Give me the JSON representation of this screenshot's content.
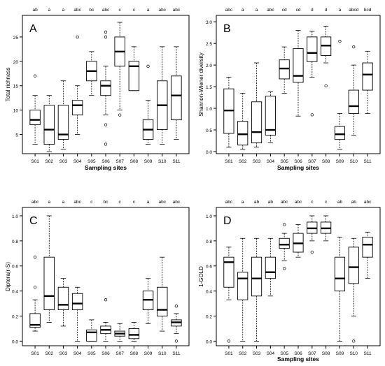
{
  "chart_data": [
    {
      "type": "boxplot",
      "panel_letter": "A",
      "xlabel": "Sampling sites",
      "ylabel": "Total richness",
      "ylim": [
        1.5,
        29
      ],
      "yticks": [
        5,
        10,
        15,
        20,
        25
      ],
      "grid": false,
      "categories": [
        "S01",
        "S02",
        "S03",
        "S04",
        "S05",
        "S06",
        "S07",
        "S08",
        "S09",
        "S10",
        "S11"
      ],
      "significance_letters": [
        "ab",
        "a",
        "a",
        "abc",
        "bc",
        "abc",
        "c",
        "c",
        "a",
        "abc",
        "abc"
      ],
      "boxes": [
        {
          "min": 3,
          "q1": 7,
          "median": 8,
          "q3": 10,
          "max": 13,
          "outliers": [
            17
          ]
        },
        {
          "min": 1.5,
          "q1": 3,
          "median": 6,
          "q3": 11,
          "max": 13,
          "outliers": []
        },
        {
          "min": 2,
          "q1": 4,
          "median": 5,
          "q3": 11,
          "max": 16,
          "outliers": []
        },
        {
          "min": 5,
          "q1": 9,
          "median": 11,
          "q3": 12,
          "max": 15,
          "outliers": [
            25
          ]
        },
        {
          "min": 13,
          "q1": 16,
          "median": 18,
          "q3": 20,
          "max": 22,
          "outliers": []
        },
        {
          "min": 9,
          "q1": 13,
          "median": 15,
          "q3": 16,
          "max": 19,
          "outliers": [
            25,
            26,
            7,
            3
          ]
        },
        {
          "min": 10,
          "q1": 19,
          "median": 22,
          "q3": 25,
          "max": 28,
          "outliers": [
            9
          ]
        },
        {
          "min": 14,
          "q1": 14,
          "median": 19,
          "q3": 20,
          "max": 23,
          "outliers": []
        },
        {
          "min": 3,
          "q1": 4,
          "median": 6,
          "q3": 8,
          "max": 12,
          "outliers": [
            19
          ]
        },
        {
          "min": 3,
          "q1": 6,
          "median": 11,
          "q3": 16,
          "max": 23,
          "outliers": []
        },
        {
          "min": 4,
          "q1": 8,
          "median": 13,
          "q3": 17,
          "max": 23,
          "outliers": []
        }
      ]
    },
    {
      "type": "boxplot",
      "panel_letter": "B",
      "xlabel": "Sampling sites",
      "ylabel": "Shannon-Wiener diversity",
      "ylim": [
        0,
        3.1
      ],
      "yticks": [
        0.0,
        0.5,
        1.0,
        1.5,
        2.0,
        2.5,
        3.0
      ],
      "grid": false,
      "categories": [
        "S01",
        "S02",
        "S03",
        "S04",
        "S05",
        "S06",
        "S07",
        "S08",
        "S09",
        "S10",
        "S11"
      ],
      "significance_letters": [
        "abc",
        "a",
        "a",
        "abc",
        "cd",
        "cd",
        "d",
        "d",
        "a",
        "abcd",
        "bcd"
      ],
      "boxes": [
        {
          "min": 0.1,
          "q1": 0.42,
          "median": 0.95,
          "q3": 1.45,
          "max": 1.72,
          "outliers": []
        },
        {
          "min": 0.05,
          "q1": 0.15,
          "median": 0.4,
          "q3": 0.7,
          "max": 1.35,
          "outliers": []
        },
        {
          "min": 0.1,
          "q1": 0.2,
          "median": 0.45,
          "q3": 1.15,
          "max": 2.05,
          "outliers": []
        },
        {
          "min": 0.2,
          "q1": 0.38,
          "median": 0.5,
          "q3": 1.28,
          "max": 1.38,
          "outliers": []
        },
        {
          "min": 1.35,
          "q1": 1.68,
          "median": 1.92,
          "q3": 2.12,
          "max": 2.42,
          "outliers": []
        },
        {
          "min": 0.82,
          "q1": 1.6,
          "median": 1.75,
          "q3": 2.38,
          "max": 2.8,
          "outliers": []
        },
        {
          "min": 1.72,
          "q1": 2.08,
          "median": 2.28,
          "q3": 2.65,
          "max": 2.78,
          "outliers": [
            0.85
          ]
        },
        {
          "min": 2.05,
          "q1": 2.22,
          "median": 2.45,
          "q3": 2.65,
          "max": 2.9,
          "outliers": [
            1.52
          ]
        },
        {
          "min": 0.05,
          "q1": 0.28,
          "median": 0.4,
          "q3": 0.58,
          "max": 0.88,
          "outliers": [
            2.55
          ]
        },
        {
          "min": 0.38,
          "q1": 0.88,
          "median": 1.05,
          "q3": 1.42,
          "max": 2.0,
          "outliers": [
            2.42
          ]
        },
        {
          "min": 0.88,
          "q1": 1.42,
          "median": 1.78,
          "q3": 2.05,
          "max": 2.32,
          "outliers": []
        }
      ]
    },
    {
      "type": "boxplot",
      "panel_letter": "C",
      "xlabel": "",
      "ylabel": "Diptera(r-S)",
      "ylim": [
        -0.02,
        1.05
      ],
      "yticks": [
        0.0,
        0.2,
        0.4,
        0.6,
        0.8,
        1.0
      ],
      "grid": false,
      "categories": [
        "S01",
        "S02",
        "S03",
        "S04",
        "S05",
        "S06",
        "S07",
        "S08",
        "S09",
        "S10",
        "S11"
      ],
      "significance_letters": [
        "abc",
        "a",
        "a",
        "abc",
        "c",
        "bc",
        "c",
        "c",
        "a",
        "abc",
        "abc"
      ],
      "boxes": [
        {
          "min": 0.08,
          "q1": 0.11,
          "median": 0.13,
          "q3": 0.22,
          "max": 0.33,
          "outliers": [
            0.43,
            0.67
          ]
        },
        {
          "min": 0.15,
          "q1": 0.25,
          "median": 0.36,
          "q3": 0.67,
          "max": 1.0,
          "outliers": []
        },
        {
          "min": 0.12,
          "q1": 0.25,
          "median": 0.29,
          "q3": 0.43,
          "max": 0.5,
          "outliers": []
        },
        {
          "min": 0.0,
          "q1": 0.25,
          "median": 0.3,
          "q3": 0.38,
          "max": 0.43,
          "outliers": []
        },
        {
          "min": 0.0,
          "q1": 0.0,
          "median": 0.07,
          "q3": 0.09,
          "max": 0.17,
          "outliers": []
        },
        {
          "min": 0.0,
          "q1": 0.06,
          "median": 0.09,
          "q3": 0.12,
          "max": 0.15,
          "outliers": [
            0.33
          ]
        },
        {
          "min": 0.0,
          "q1": 0.04,
          "median": 0.06,
          "q3": 0.08,
          "max": 0.14,
          "outliers": []
        },
        {
          "min": 0.0,
          "q1": 0.02,
          "median": 0.05,
          "q3": 0.1,
          "max": 0.15,
          "outliers": []
        },
        {
          "min": 0.14,
          "q1": 0.25,
          "median": 0.33,
          "q3": 0.4,
          "max": 0.5,
          "outliers": []
        },
        {
          "min": 0.08,
          "q1": 0.2,
          "median": 0.25,
          "q3": 0.43,
          "max": 0.67,
          "outliers": []
        },
        {
          "min": 0.06,
          "q1": 0.12,
          "median": 0.15,
          "q3": 0.17,
          "max": 0.22,
          "outliers": [
            0.28,
            0.0
          ]
        }
      ]
    },
    {
      "type": "boxplot",
      "panel_letter": "D",
      "xlabel": "Sampling sites",
      "ylabel": "1-GOLD",
      "ylim": [
        -0.02,
        1.05
      ],
      "yticks": [
        0.0,
        0.2,
        0.4,
        0.6,
        0.8,
        1.0
      ],
      "grid": false,
      "categories": [
        "S01",
        "S02",
        "S03",
        "S04",
        "S05",
        "S06",
        "S07",
        "S08",
        "S09",
        "S10",
        "S11"
      ],
      "significance_letters": [
        "abc",
        "a",
        "ab",
        "ab",
        "abc",
        "abc",
        "c",
        "c",
        "ab",
        "ab",
        "abc"
      ],
      "boxes": [
        {
          "min": 0.33,
          "q1": 0.43,
          "median": 0.63,
          "q3": 0.67,
          "max": 0.75,
          "outliers": [
            0.0
          ]
        },
        {
          "min": 0.0,
          "q1": 0.33,
          "median": 0.5,
          "q3": 0.55,
          "max": 0.82,
          "outliers": []
        },
        {
          "min": 0.0,
          "q1": 0.36,
          "median": 0.5,
          "q3": 0.67,
          "max": 0.82,
          "outliers": []
        },
        {
          "min": 0.36,
          "q1": 0.5,
          "median": 0.55,
          "q3": 0.67,
          "max": 0.82,
          "outliers": []
        },
        {
          "min": 0.64,
          "q1": 0.74,
          "median": 0.77,
          "q3": 0.82,
          "max": 0.86,
          "outliers": [
            0.93,
            0.58
          ]
        },
        {
          "min": 0.67,
          "q1": 0.71,
          "median": 0.78,
          "q3": 0.86,
          "max": 0.93,
          "outliers": []
        },
        {
          "min": 0.8,
          "q1": 0.86,
          "median": 0.9,
          "q3": 0.95,
          "max": 1.0,
          "outliers": [
            0.71
          ]
        },
        {
          "min": 0.8,
          "q1": 0.86,
          "median": 0.9,
          "q3": 0.95,
          "max": 1.0,
          "outliers": []
        },
        {
          "min": 0.0,
          "q1": 0.4,
          "median": 0.5,
          "q3": 0.67,
          "max": 0.83,
          "outliers": []
        },
        {
          "min": 0.2,
          "q1": 0.46,
          "median": 0.59,
          "q3": 0.75,
          "max": 0.82,
          "outliers": [
            0.0
          ]
        },
        {
          "min": 0.5,
          "q1": 0.67,
          "median": 0.77,
          "q3": 0.83,
          "max": 0.87,
          "outliers": []
        }
      ]
    }
  ]
}
